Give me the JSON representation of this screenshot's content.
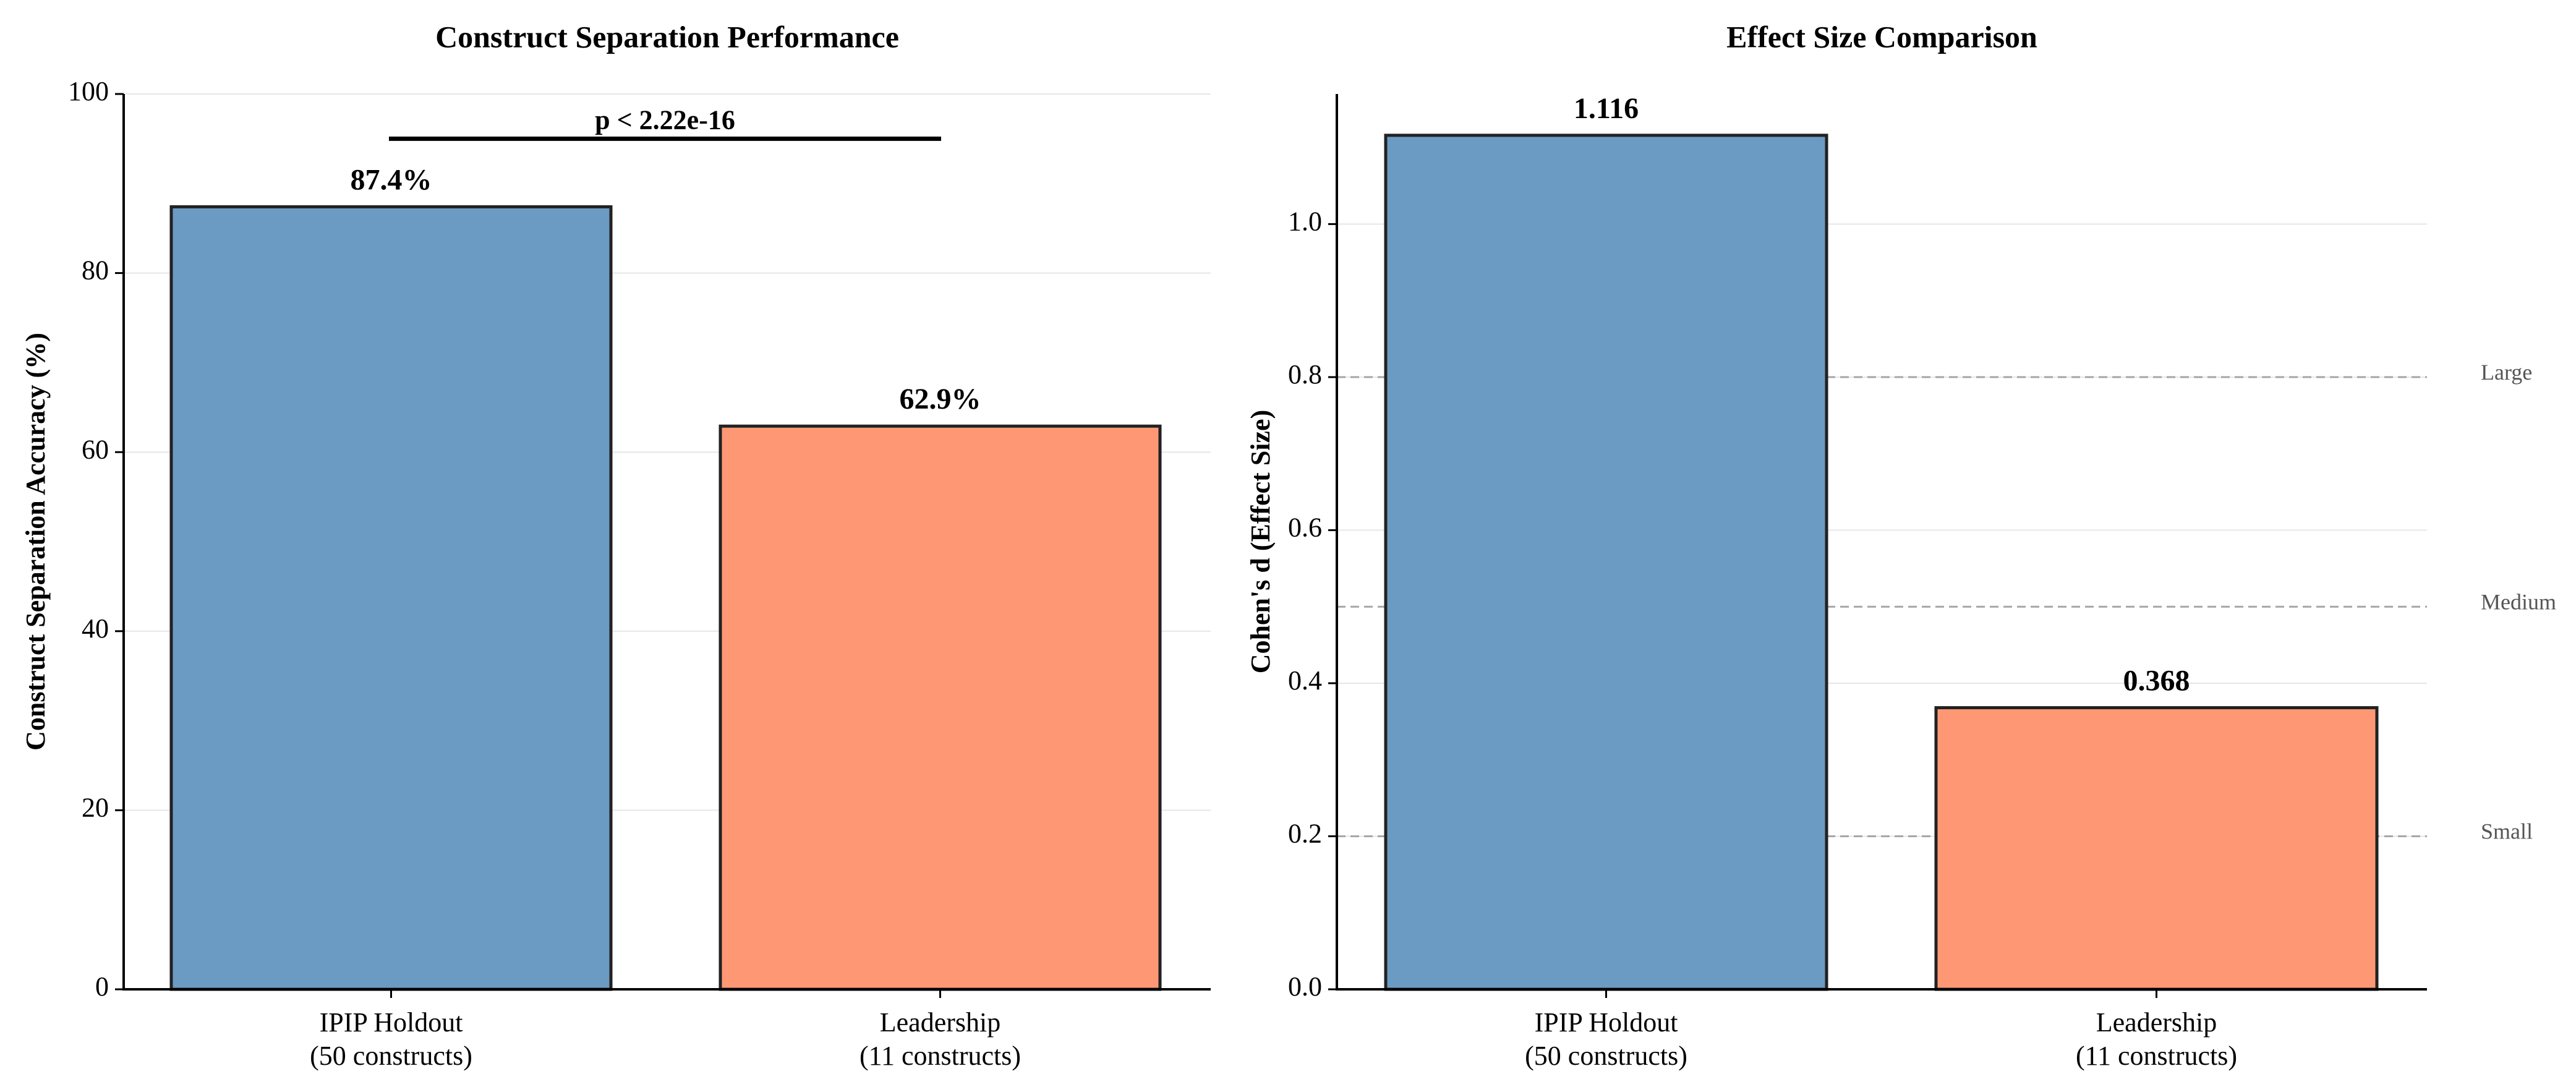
{
  "chart_data": [
    {
      "type": "bar",
      "title": "Construct Separation Performance",
      "xlabel": "",
      "ylabel": "Construct Separation Accuracy (%)",
      "categories": [
        "IPIP Holdout\n(50 constructs)",
        "Leadership\n(11 constructs)"
      ],
      "values": [
        87.4,
        62.9
      ],
      "value_labels": [
        "87.4%",
        "62.9%"
      ],
      "colors": [
        "#6b9bc3",
        "#fe9874"
      ],
      "ylim": [
        0,
        100
      ],
      "yticks": [
        0,
        20,
        40,
        60,
        80,
        100
      ],
      "ytick_labels": [
        "0",
        "20",
        "40",
        "60",
        "80",
        "100"
      ],
      "grid": true,
      "annotation": {
        "text": "p < 2.22e-16",
        "y": 95
      }
    },
    {
      "type": "bar",
      "title": "Effect Size Comparison",
      "xlabel": "",
      "ylabel": "Cohen's d (Effect Size)",
      "categories": [
        "IPIP Holdout\n(50 constructs)",
        "Leadership\n(11 constructs)"
      ],
      "values": [
        1.116,
        0.368
      ],
      "value_labels": [
        "1.116",
        "0.368"
      ],
      "colors": [
        "#6b9bc3",
        "#fe9874"
      ],
      "ylim": [
        0,
        1.17
      ],
      "yticks": [
        0,
        0.2,
        0.4,
        0.6,
        0.8,
        1.0
      ],
      "ytick_labels": [
        "0.0",
        "0.2",
        "0.4",
        "0.6",
        "0.8",
        "1.0"
      ],
      "grid": true,
      "reference_lines": [
        {
          "value": 0.8,
          "label": "Large"
        },
        {
          "value": 0.5,
          "label": "Medium"
        },
        {
          "value": 0.2,
          "label": "Small"
        }
      ]
    }
  ]
}
